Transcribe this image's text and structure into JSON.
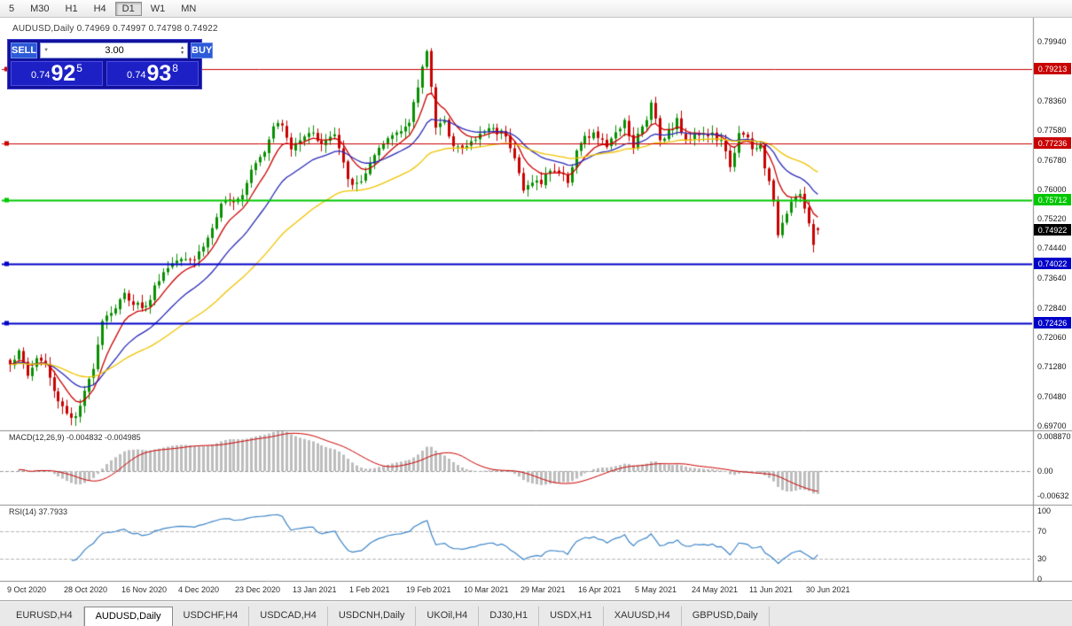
{
  "toolbar": {
    "timeframes": [
      {
        "label": "5",
        "active": false
      },
      {
        "label": "M30",
        "active": false
      },
      {
        "label": "H1",
        "active": false
      },
      {
        "label": "H4",
        "active": false
      },
      {
        "label": "D1",
        "active": true
      },
      {
        "label": "W1",
        "active": false
      },
      {
        "label": "MN",
        "active": false
      }
    ]
  },
  "chart": {
    "title": "AUDUSD,Daily  0.74969 0.74997 0.74798 0.74922",
    "symbol": "AUDUSD",
    "period": "Daily",
    "ohlc": {
      "open": "0.74969",
      "high": "0.74997",
      "low": "0.74798",
      "close": "0.74922"
    }
  },
  "trade_panel": {
    "sell_label": "SELL",
    "buy_label": "BUY",
    "volume": "3.00",
    "bid": {
      "prefix": "0.74",
      "big": "92",
      "sup": "5"
    },
    "ask": {
      "prefix": "0.74",
      "big": "93",
      "sup": "8"
    }
  },
  "price_axis": {
    "ticks": [
      "0.79940",
      "0.78360",
      "0.77580",
      "0.76780",
      "0.76000",
      "0.75220",
      "0.74440",
      "0.73640",
      "0.72840",
      "0.72060",
      "0.71280",
      "0.70480",
      "0.69700"
    ],
    "badges": [
      {
        "label": "0.79213",
        "price": 0.79213,
        "bg": "#C80000",
        "fg": "#FFFFFF"
      },
      {
        "label": "0.77236",
        "price": 0.77236,
        "bg": "#C80000",
        "fg": "#FFFFFF"
      },
      {
        "label": "0.75712",
        "price": 0.75712,
        "bg": "#00C800",
        "fg": "#FFFFFF"
      },
      {
        "label": "0.74922",
        "price": 0.74922,
        "bg": "#000000",
        "fg": "#FFFFFF"
      },
      {
        "label": "0.74022",
        "price": 0.74022,
        "bg": "#0000C8",
        "fg": "#FFFFFF"
      },
      {
        "label": "0.72426",
        "price": 0.72426,
        "bg": "#0000C8",
        "fg": "#FFFFFF"
      }
    ]
  },
  "hlines": [
    {
      "price": 0.79213,
      "color": "#C80000",
      "width": 1
    },
    {
      "price": 0.77236,
      "color": "#C80000",
      "width": 1
    },
    {
      "price": 0.75712,
      "color": "#00C800",
      "width": 2
    },
    {
      "price": 0.74022,
      "color": "#0000C8",
      "width": 2
    },
    {
      "price": 0.72426,
      "color": "#0000C8",
      "width": 2
    }
  ],
  "macd_panel": {
    "label": "MACD(12,26,9) -0.004832 -0.004985",
    "axis": [
      "0.008870",
      "0.00",
      "-0.00632"
    ],
    "axis_values": [
      0.00887,
      0,
      -0.00632
    ]
  },
  "rsi_panel": {
    "label": "RSI(14) 37.7933",
    "axis": [
      "100",
      "70",
      "30",
      "0"
    ],
    "levels": [
      70,
      30
    ]
  },
  "tabs": [
    {
      "label": "EURUSD,H4",
      "active": false
    },
    {
      "label": "AUDUSD,Daily",
      "active": true
    },
    {
      "label": "USDCHF,H4",
      "active": false
    },
    {
      "label": "USDCAD,H4",
      "active": false
    },
    {
      "label": "USDCNH,Daily",
      "active": false
    },
    {
      "label": "UKOil,H4",
      "active": false
    },
    {
      "label": "DJ30,H1",
      "active": false
    },
    {
      "label": "USDX,H1",
      "active": false
    },
    {
      "label": "XAUUSD,H4",
      "active": false
    },
    {
      "label": "GBPUSD,Daily",
      "active": false
    }
  ],
  "chart_data": {
    "type": "candlestick",
    "symbol": "AUDUSD",
    "timeframe": "Daily",
    "count": 185,
    "label_step": 13,
    "x_labels": [
      "9 Oct 2020",
      "28 Oct 2020",
      "16 Nov 2020",
      "4 Dec 2020",
      "23 Dec 2020",
      "13 Jan 2021",
      "1 Feb 2021",
      "19 Feb 2021",
      "10 Mar 2021",
      "29 Mar 2021",
      "16 Apr 2021",
      "5 May 2021",
      "24 May 2021",
      "11 Jun 2021",
      "30 Jun 2021"
    ],
    "y_range": [
      0.697,
      0.7994
    ],
    "last_bar": {
      "o": 0.74969,
      "h": 0.74997,
      "l": 0.74798,
      "c": 0.74922
    },
    "anchors": [
      [
        0,
        0.714
      ],
      [
        2,
        0.7165
      ],
      [
        4,
        0.7105
      ],
      [
        6,
        0.715
      ],
      [
        8,
        0.7135
      ],
      [
        10,
        0.706
      ],
      [
        13,
        0.7005
      ],
      [
        15,
        0.699
      ],
      [
        17,
        0.7055
      ],
      [
        19,
        0.713
      ],
      [
        21,
        0.7255
      ],
      [
        24,
        0.7285
      ],
      [
        26,
        0.732
      ],
      [
        28,
        0.73
      ],
      [
        31,
        0.7285
      ],
      [
        34,
        0.7365
      ],
      [
        37,
        0.7405
      ],
      [
        39,
        0.7425
      ],
      [
        42,
        0.7415
      ],
      [
        45,
        0.747
      ],
      [
        48,
        0.7555
      ],
      [
        51,
        0.7575
      ],
      [
        53,
        0.759
      ],
      [
        55,
        0.766
      ],
      [
        58,
        0.7705
      ],
      [
        60,
        0.7775
      ],
      [
        62,
        0.777
      ],
      [
        64,
        0.7705
      ],
      [
        66,
        0.774
      ],
      [
        68,
        0.7755
      ],
      [
        71,
        0.7725
      ],
      [
        74,
        0.7745
      ],
      [
        76,
        0.7665
      ],
      [
        78,
        0.7605
      ],
      [
        80,
        0.7625
      ],
      [
        83,
        0.7685
      ],
      [
        86,
        0.7735
      ],
      [
        89,
        0.7765
      ],
      [
        91,
        0.7775
      ],
      [
        93,
        0.7875
      ],
      [
        95,
        0.7975
      ],
      [
        96,
        0.788
      ],
      [
        97,
        0.7765
      ],
      [
        99,
        0.7775
      ],
      [
        101,
        0.7725
      ],
      [
        103,
        0.7705
      ],
      [
        105,
        0.7725
      ],
      [
        107,
        0.7745
      ],
      [
        109,
        0.7765
      ],
      [
        111,
        0.7755
      ],
      [
        113,
        0.775
      ],
      [
        115,
        0.7685
      ],
      [
        117,
        0.7595
      ],
      [
        119,
        0.7625
      ],
      [
        121,
        0.7615
      ],
      [
        123,
        0.7655
      ],
      [
        125,
        0.7645
      ],
      [
        127,
        0.7625
      ],
      [
        129,
        0.7705
      ],
      [
        131,
        0.7735
      ],
      [
        133,
        0.7745
      ],
      [
        135,
        0.7735
      ],
      [
        136,
        0.7705
      ],
      [
        138,
        0.7755
      ],
      [
        140,
        0.7785
      ],
      [
        142,
        0.7715
      ],
      [
        143,
        0.7745
      ],
      [
        145,
        0.7785
      ],
      [
        146,
        0.784
      ],
      [
        148,
        0.7735
      ],
      [
        150,
        0.7755
      ],
      [
        152,
        0.7785
      ],
      [
        154,
        0.7725
      ],
      [
        156,
        0.7755
      ],
      [
        158,
        0.7745
      ],
      [
        160,
        0.7745
      ],
      [
        162,
        0.7725
      ],
      [
        164,
        0.7665
      ],
      [
        166,
        0.7745
      ],
      [
        168,
        0.7735
      ],
      [
        169,
        0.7705
      ],
      [
        171,
        0.7715
      ],
      [
        173,
        0.7615
      ],
      [
        174,
        0.756
      ],
      [
        175,
        0.7485
      ],
      [
        177,
        0.7545
      ],
      [
        179,
        0.759
      ],
      [
        180,
        0.7585
      ],
      [
        181,
        0.755
      ],
      [
        182,
        0.75
      ],
      [
        183,
        0.7455
      ],
      [
        184,
        0.7492
      ]
    ],
    "overlays": [
      {
        "name": "ma-fast",
        "period": 8,
        "color": "#CC0000"
      },
      {
        "name": "ma-mid",
        "period": 20,
        "color": "#2A2AB8"
      },
      {
        "name": "ma-slow",
        "period": 45,
        "color": "#F0C400"
      }
    ],
    "colors": {
      "up": "#089000",
      "down": "#C80000",
      "macd_histogram": "#BDBDBD",
      "macd_signal": "#CC0000",
      "rsi": "#3D85C8",
      "level_dash": "#B8B8B8"
    },
    "indicators": [
      {
        "name": "MACD(12,26,9)",
        "main": -0.004832,
        "signal": -0.004985,
        "axis_max": 0.00887,
        "axis_min": -0.00632
      },
      {
        "name": "RSI(14)",
        "value": 37.7933,
        "levels": [
          30,
          70
        ]
      }
    ]
  }
}
